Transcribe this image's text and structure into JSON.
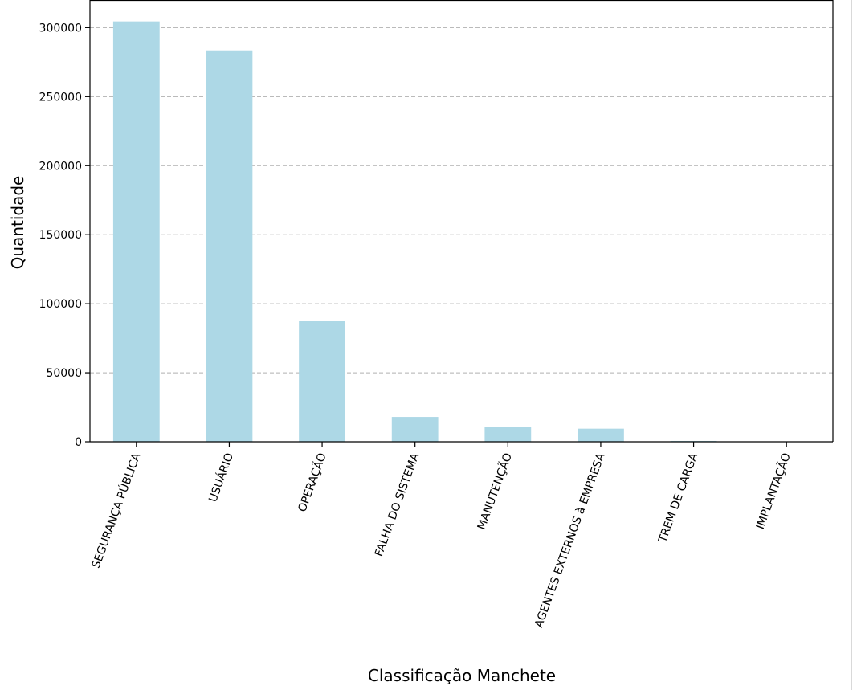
{
  "chart_data": {
    "type": "bar",
    "categories": [
      "SEGURANÇA PÚBLICA",
      "USUÁRIO",
      "OPERAÇÃO",
      "FALHA DO SISTEMA",
      "MANUTENÇÃO",
      "AGENTES EXTERNOS à EMPRESA",
      "TREM DE CARGA",
      "IMPLANTAÇÃO"
    ],
    "values": [
      304500,
      283500,
      87500,
      18000,
      10500,
      9500,
      600,
      150
    ],
    "xlabel": "Classificação Manchete",
    "ylabel": "Quantidade",
    "ylim": [
      0,
      320000
    ],
    "yticks": [
      0,
      50000,
      100000,
      150000,
      200000,
      250000,
      300000
    ],
    "ytick_labels": [
      "0",
      "50000",
      "100000",
      "150000",
      "200000",
      "250000",
      "300000"
    ],
    "grid": "y-dashed",
    "bar_color": "#add8e6",
    "legend": "none"
  }
}
